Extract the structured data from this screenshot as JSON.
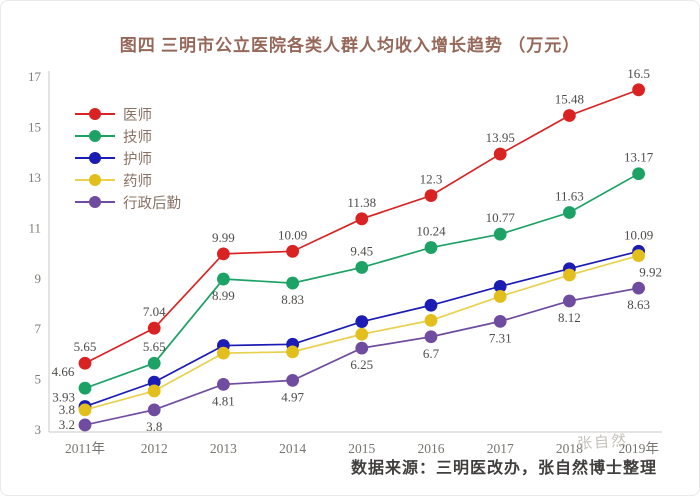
{
  "title": "图四 三明市公立医院各类人群人均收入增长趋势 （万元）",
  "source_note": "数据来源：三明医改办，张自然博士整理",
  "watermark": "张自然",
  "chart_data": {
    "type": "line",
    "title": "图四 三明市公立医院各类人群人均收入增长趋势 （万元）",
    "xlabel": "",
    "ylabel": "",
    "ylim": [
      3,
      17
    ],
    "yticks": [
      3,
      5,
      7,
      9,
      11,
      13,
      15,
      17
    ],
    "grid": false,
    "legend_position": "upper-left",
    "categories": [
      "2011年",
      "2012",
      "2013",
      "2014",
      "2015",
      "2016",
      "2017",
      "2018",
      "2019年"
    ],
    "series": [
      {
        "name": "医师",
        "color": "#d92323",
        "values": [
          5.65,
          7.04,
          9.99,
          10.09,
          11.38,
          12.3,
          13.95,
          15.48,
          16.5
        ],
        "labels": [
          {
            "text": "5.65",
            "pos": "above"
          },
          {
            "text": "7.04",
            "pos": "above"
          },
          {
            "text": "9.99",
            "pos": "above"
          },
          {
            "text": "10.09",
            "pos": "above"
          },
          {
            "text": "11.38",
            "pos": "above"
          },
          {
            "text": "12.3",
            "pos": "above"
          },
          {
            "text": "13.95",
            "pos": "above"
          },
          {
            "text": "15.48",
            "pos": "above"
          },
          {
            "text": "16.5",
            "pos": "above"
          }
        ]
      },
      {
        "name": "技师",
        "color": "#1da266",
        "values": [
          4.66,
          5.65,
          8.99,
          8.83,
          9.45,
          10.24,
          10.77,
          11.63,
          13.17
        ],
        "labels": [
          {
            "text": "4.66",
            "pos": "above-left"
          },
          {
            "text": "5.65",
            "pos": "above"
          },
          {
            "text": "8.99",
            "pos": "below"
          },
          {
            "text": "8.83",
            "pos": "below"
          },
          {
            "text": "9.45",
            "pos": "above"
          },
          {
            "text": "10.24",
            "pos": "above"
          },
          {
            "text": "10.77",
            "pos": "above"
          },
          {
            "text": "11.63",
            "pos": "above"
          },
          {
            "text": "13.17",
            "pos": "above"
          }
        ]
      },
      {
        "name": "护师",
        "color": "#1b1cb4",
        "values": [
          3.93,
          4.9,
          6.35,
          6.4,
          7.3,
          7.95,
          8.7,
          9.4,
          10.09
        ],
        "labels": [
          {
            "text": "3.93",
            "pos": "left-up"
          },
          null,
          null,
          null,
          null,
          null,
          null,
          null,
          {
            "text": "10.09",
            "pos": "above"
          }
        ]
      },
      {
        "name": "药师",
        "color": "#e2bf1d",
        "line_color": "#e8d14e",
        "values": [
          3.8,
          4.55,
          6.05,
          6.1,
          6.8,
          7.35,
          8.3,
          9.15,
          9.92
        ],
        "labels": [
          {
            "text": "3.8",
            "pos": "left"
          },
          null,
          null,
          null,
          null,
          null,
          null,
          null,
          {
            "text": "9.92",
            "pos": "below-right"
          }
        ]
      },
      {
        "name": "行政后勤",
        "color": "#6f4c9f",
        "values": [
          3.2,
          3.8,
          4.81,
          4.97,
          6.25,
          6.7,
          7.31,
          8.12,
          8.63
        ],
        "labels": [
          {
            "text": "3.2",
            "pos": "left"
          },
          {
            "text": "3.8",
            "pos": "below"
          },
          {
            "text": "4.81",
            "pos": "below"
          },
          {
            "text": "4.97",
            "pos": "below"
          },
          {
            "text": "6.25",
            "pos": "below"
          },
          {
            "text": "6.7",
            "pos": "below"
          },
          {
            "text": "7.31",
            "pos": "below"
          },
          {
            "text": "8.12",
            "pos": "below"
          },
          {
            "text": "8.63",
            "pos": "below"
          }
        ]
      }
    ]
  }
}
